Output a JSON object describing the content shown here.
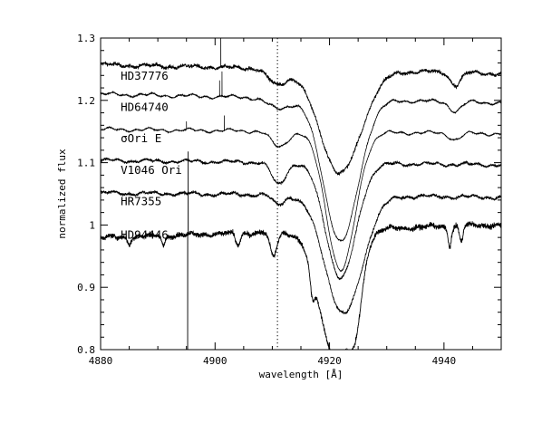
{
  "chart_data": {
    "type": "line",
    "title": "",
    "xlabel": "wavelength [Å]",
    "ylabel": "normalized flux",
    "xlim": [
      4880,
      4950
    ],
    "ylim": [
      0.8,
      1.3
    ],
    "x_ticks": [
      4880,
      4900,
      4920,
      4940
    ],
    "y_ticks": [
      0.8,
      0.9,
      1,
      1.1,
      1.2,
      1.3
    ],
    "y_tick_labels": [
      "0.8",
      "0.9",
      "1",
      "1.1",
      "1.2",
      "1.3"
    ],
    "reference_line": {
      "x": 4910.9,
      "style": "dotted"
    },
    "grid": false,
    "legend": "none",
    "series": [
      {
        "name": "HD37776",
        "label_pos": {
          "x": 4883.5,
          "y": 1.233
        },
        "base": 1.25,
        "slope": -0.0002,
        "noise": 0.003,
        "color": "#000000",
        "features": [
          {
            "center": 4921.9,
            "depth": 0.165,
            "width": 3.6
          },
          {
            "center": 4910.8,
            "depth": 0.025,
            "width": 1.5
          },
          {
            "center": 4942.0,
            "depth": 0.02,
            "width": 0.9
          }
        ],
        "spikes": [
          {
            "x": 4901.0,
            "height": 0.08
          }
        ],
        "points": [
          [
            4880,
            1.24
          ],
          [
            4900,
            1.25
          ],
          [
            4910,
            1.24
          ],
          [
            4915,
            1.23
          ],
          [
            4919,
            1.17
          ],
          [
            4922,
            1.08
          ],
          [
            4925,
            1.17
          ],
          [
            4930,
            1.24
          ],
          [
            4940,
            1.23
          ],
          [
            4942,
            1.22
          ],
          [
            4950,
            1.24
          ]
        ]
      },
      {
        "name": "HD64740",
        "label_pos": {
          "x": 4883.5,
          "y": 1.183
        },
        "base": 1.203,
        "slope": -0.0002,
        "noise": 0.0012,
        "color": "#000000",
        "features": [
          {
            "center": 4922.0,
            "depth": 0.228,
            "width": 3.0
          },
          {
            "center": 4911.0,
            "depth": 0.017,
            "width": 1.8
          },
          {
            "center": 4942.0,
            "depth": 0.015,
            "width": 1.0
          }
        ],
        "spikes": [
          {
            "x": 4900.8,
            "height": 0.025
          },
          {
            "x": 4901.2,
            "height": 0.04
          }
        ],
        "points": [
          [
            4880,
            1.2
          ],
          [
            4900,
            1.2
          ],
          [
            4911,
            1.185
          ],
          [
            4915,
            1.18
          ],
          [
            4922,
            0.975
          ],
          [
            4930,
            1.19
          ],
          [
            4942,
            1.18
          ],
          [
            4950,
            1.2
          ]
        ]
      },
      {
        "name": "σOri E",
        "label_pos": {
          "x": 4883.5,
          "y": 1.133
        },
        "base": 1.15,
        "slope": -0.0001,
        "noise": 0.0008,
        "color": "#000000",
        "features": [
          {
            "center": 4922.0,
            "depth": 0.222,
            "width": 2.5
          },
          {
            "center": 4911.2,
            "depth": 0.025,
            "width": 1.4
          },
          {
            "center": 4942.0,
            "depth": 0.01,
            "width": 1.0
          }
        ],
        "spikes": [
          {
            "x": 4895.0,
            "height": 0.012
          },
          {
            "x": 4901.6,
            "height": 0.025
          }
        ],
        "points": [
          [
            4880,
            1.15
          ],
          [
            4900,
            1.145
          ],
          [
            4911,
            1.125
          ],
          [
            4914,
            1.14
          ],
          [
            4922,
            0.925
          ],
          [
            4930,
            1.14
          ],
          [
            4950,
            1.15
          ]
        ]
      },
      {
        "name": "V1046 Ori",
        "label_pos": {
          "x": 4883.5,
          "y": 1.082
        },
        "base": 1.1,
        "slope": -0.0001,
        "noise": 0.0022,
        "color": "#000000",
        "features": [
          {
            "center": 4922.0,
            "depth": 0.185,
            "width": 2.6
          },
          {
            "center": 4911.1,
            "depth": 0.035,
            "width": 1.2
          }
        ],
        "spikes": [],
        "points": [
          [
            4880,
            1.1
          ],
          [
            4900,
            1.095
          ],
          [
            4911,
            1.065
          ],
          [
            4914,
            1.09
          ],
          [
            4922,
            0.915
          ],
          [
            4930,
            1.09
          ],
          [
            4950,
            1.1
          ]
        ]
      },
      {
        "name": "HR7355",
        "label_pos": {
          "x": 4883.5,
          "y": 1.032
        },
        "base": 1.048,
        "slope": -0.0001,
        "noise": 0.0025,
        "color": "#000000",
        "features": [
          {
            "center": 4922.5,
            "depth": 0.19,
            "width": 3.2
          },
          {
            "center": 4911.0,
            "depth": 0.015,
            "width": 1.0
          }
        ],
        "spikes": [],
        "points": [
          [
            4880,
            1.05
          ],
          [
            4900,
            1.045
          ],
          [
            4911,
            1.03
          ],
          [
            4915,
            1.02
          ],
          [
            4922,
            0.86
          ],
          [
            4930,
            1.035
          ],
          [
            4950,
            1.05
          ]
        ]
      },
      {
        "name": "HD94446",
        "label_pos": {
          "x": 4883.5,
          "y": 0.978
        },
        "base": 0.99,
        "slope": 0.0003,
        "noise": 0.004,
        "color": "#000000",
        "features": [
          {
            "center": 4921.0,
            "depth": 0.2,
            "width": 2.8
          },
          {
            "center": 4924.5,
            "depth": 0.09,
            "width": 1.2
          },
          {
            "center": 4917.0,
            "depth": 0.04,
            "width": 0.4
          },
          {
            "center": 4910.2,
            "depth": 0.04,
            "width": 0.6
          },
          {
            "center": 4904.0,
            "depth": 0.02,
            "width": 0.4
          },
          {
            "center": 4891.0,
            "depth": 0.015,
            "width": 0.3
          },
          {
            "center": 4885.0,
            "depth": 0.01,
            "width": 0.3
          },
          {
            "center": 4941.0,
            "depth": 0.03,
            "width": 0.3
          },
          {
            "center": 4943.0,
            "depth": 0.025,
            "width": 0.3
          }
        ],
        "spikes": [
          {
            "x": 4895.2,
            "height": -0.2
          },
          {
            "x": 4895.3,
            "height": 0.13
          }
        ],
        "points": [
          [
            4880,
            0.965
          ],
          [
            4895,
            0.985
          ],
          [
            4905,
            0.99
          ],
          [
            4910,
            0.95
          ],
          [
            4914,
            0.955
          ],
          [
            4917,
            0.92
          ],
          [
            4920,
            0.8
          ],
          [
            4924,
            0.88
          ],
          [
            4930,
            0.99
          ],
          [
            4941,
            0.96
          ],
          [
            4950,
            1.005
          ]
        ]
      }
    ]
  }
}
